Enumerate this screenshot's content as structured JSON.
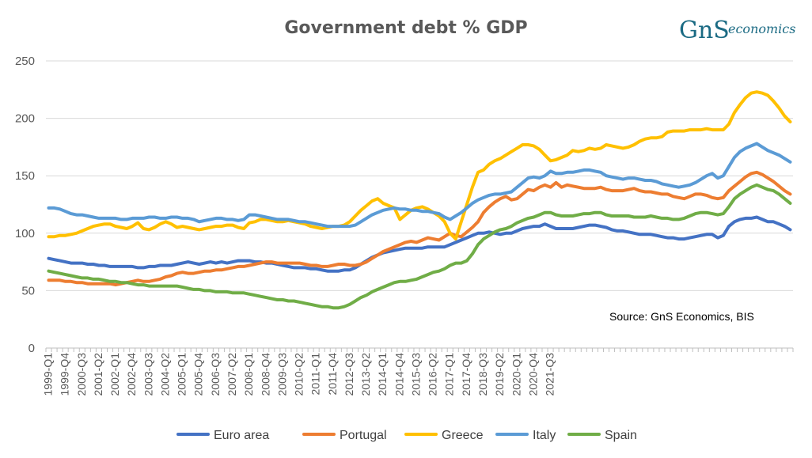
{
  "colors": {
    "Euro area": "#4472c4",
    "Portugal": "#ed7d31",
    "Greece": "#ffc000",
    "Italy": "#5b9bd5",
    "Spain": "#70ad47"
  },
  "logo": {
    "mark": "GnS",
    "text": "economics"
  },
  "source_note": "Source: GnS Economics, BIS",
  "chart_data": {
    "type": "line",
    "title": "Government debt % GDP",
    "xlabel": "",
    "ylabel": "",
    "ylim": [
      0,
      250
    ],
    "yticks": [
      0,
      50,
      100,
      150,
      200,
      250
    ],
    "grid": true,
    "legend": "bottom",
    "start_quarter": "1999-Q1",
    "x_tick_labels": [
      "1999-Q1",
      "1999-Q4",
      "2000-Q3",
      "2001-Q2",
      "2002-Q1",
      "2002-Q4",
      "2003-Q3",
      "2004-Q2",
      "2005-Q1",
      "2005-Q4",
      "2006-Q3",
      "2007-Q2",
      "2008-Q1",
      "2008-Q4",
      "2009-Q3",
      "2010-Q2",
      "2011-Q1",
      "2011-Q4",
      "2012-Q3",
      "2013-Q2",
      "2014-Q1",
      "2014-Q4",
      "2015-Q3",
      "2016-Q2",
      "2017-Q1",
      "2017-Q4",
      "2018-Q3",
      "2019-Q2",
      "2020-Q1",
      "2020-Q4",
      "2021-Q3"
    ],
    "series": [
      {
        "name": "Euro area",
        "values": [
          78,
          77,
          76,
          75,
          74,
          74,
          74,
          73,
          73,
          72,
          72,
          71,
          71,
          71,
          71,
          71,
          70,
          70,
          71,
          71,
          72,
          72,
          72,
          73,
          74,
          75,
          74,
          73,
          74,
          75,
          74,
          75,
          74,
          75,
          76,
          76,
          76,
          75,
          75,
          74,
          74,
          73,
          72,
          71,
          70,
          70,
          70,
          69,
          69,
          68,
          67,
          67,
          67,
          68,
          68,
          70,
          73,
          76,
          79,
          81,
          83,
          84,
          85,
          86,
          87,
          87,
          87,
          87,
          88,
          88,
          88,
          88,
          90,
          92,
          94,
          96,
          98,
          100,
          100,
          101,
          100,
          99,
          100,
          100,
          102,
          104,
          105,
          106,
          106,
          108,
          106,
          104,
          104,
          104,
          104,
          105,
          106,
          107,
          107,
          106,
          105,
          103,
          102,
          102,
          101,
          100,
          99,
          99,
          99,
          98,
          97,
          96,
          96,
          95,
          95,
          96,
          97,
          98,
          99,
          99,
          96,
          98,
          106,
          110,
          112,
          113,
          113,
          114,
          112,
          110,
          110,
          108,
          106,
          103
        ]
      },
      {
        "name": "Portugal",
        "values": [
          59,
          59,
          59,
          58,
          58,
          57,
          57,
          56,
          56,
          56,
          56,
          56,
          55,
          56,
          57,
          58,
          59,
          58,
          58,
          59,
          60,
          62,
          63,
          65,
          66,
          65,
          65,
          66,
          67,
          67,
          68,
          68,
          69,
          70,
          71,
          71,
          72,
          73,
          74,
          75,
          75,
          74,
          74,
          74,
          74,
          74,
          73,
          72,
          72,
          71,
          71,
          72,
          73,
          73,
          72,
          72,
          73,
          75,
          78,
          81,
          84,
          86,
          88,
          90,
          92,
          93,
          92,
          94,
          96,
          95,
          94,
          97,
          100,
          98,
          97,
          101,
          105,
          110,
          118,
          123,
          127,
          130,
          132,
          129,
          130,
          134,
          138,
          137,
          140,
          142,
          140,
          144,
          140,
          142,
          141,
          140,
          139,
          139,
          139,
          140,
          138,
          137,
          137,
          137,
          138,
          139,
          137,
          136,
          136,
          135,
          134,
          134,
          132,
          131,
          130,
          132,
          134,
          134,
          133,
          131,
          130,
          131,
          137,
          141,
          145,
          149,
          152,
          153,
          151,
          148,
          145,
          141,
          137,
          134
        ]
      },
      {
        "name": "Greece",
        "values": [
          97,
          97,
          98,
          98,
          99,
          100,
          102,
          104,
          106,
          107,
          108,
          108,
          106,
          105,
          104,
          106,
          109,
          104,
          103,
          105,
          108,
          110,
          108,
          105,
          106,
          105,
          104,
          103,
          104,
          105,
          106,
          106,
          107,
          107,
          105,
          104,
          109,
          110,
          112,
          112,
          111,
          110,
          110,
          111,
          110,
          109,
          108,
          106,
          105,
          104,
          105,
          106,
          106,
          107,
          110,
          115,
          120,
          124,
          128,
          130,
          126,
          124,
          122,
          112,
          116,
          120,
          122,
          123,
          121,
          118,
          115,
          110,
          100,
          95,
          110,
          125,
          140,
          153,
          155,
          160,
          163,
          165,
          168,
          171,
          174,
          177,
          177,
          176,
          173,
          168,
          163,
          164,
          166,
          168,
          172,
          171,
          172,
          174,
          173,
          174,
          177,
          176,
          175,
          174,
          175,
          177,
          180,
          182,
          183,
          183,
          184,
          188,
          189,
          189,
          189,
          190,
          190,
          190,
          191,
          190,
          190,
          190,
          195,
          205,
          212,
          218,
          222,
          223,
          222,
          220,
          215,
          209,
          202,
          197
        ]
      },
      {
        "name": "Italy",
        "values": [
          122,
          122,
          121,
          119,
          117,
          116,
          116,
          115,
          114,
          113,
          113,
          113,
          113,
          112,
          112,
          113,
          113,
          113,
          114,
          114,
          113,
          113,
          114,
          114,
          113,
          113,
          112,
          110,
          111,
          112,
          113,
          113,
          112,
          112,
          111,
          112,
          116,
          116,
          115,
          114,
          113,
          112,
          112,
          112,
          111,
          110,
          110,
          109,
          108,
          107,
          106,
          106,
          106,
          106,
          106,
          107,
          110,
          113,
          116,
          118,
          120,
          121,
          122,
          121,
          121,
          120,
          120,
          119,
          119,
          118,
          117,
          114,
          112,
          115,
          118,
          122,
          126,
          129,
          131,
          133,
          134,
          134,
          135,
          136,
          140,
          144,
          148,
          149,
          148,
          150,
          154,
          152,
          152,
          153,
          153,
          154,
          155,
          155,
          154,
          153,
          150,
          149,
          148,
          147,
          148,
          148,
          147,
          146,
          146,
          145,
          143,
          142,
          141,
          140,
          141,
          142,
          144,
          147,
          150,
          152,
          148,
          150,
          158,
          166,
          171,
          174,
          176,
          178,
          175,
          172,
          170,
          168,
          165,
          162
        ]
      },
      {
        "name": "Spain",
        "values": [
          67,
          66,
          65,
          64,
          63,
          62,
          61,
          61,
          60,
          60,
          59,
          58,
          58,
          57,
          57,
          56,
          55,
          55,
          54,
          54,
          54,
          54,
          54,
          54,
          53,
          52,
          51,
          51,
          50,
          50,
          49,
          49,
          49,
          48,
          48,
          48,
          47,
          46,
          45,
          44,
          43,
          42,
          42,
          41,
          41,
          40,
          39,
          38,
          37,
          36,
          36,
          35,
          35,
          36,
          38,
          41,
          44,
          46,
          49,
          51,
          53,
          55,
          57,
          58,
          58,
          59,
          60,
          62,
          64,
          66,
          67,
          69,
          72,
          74,
          74,
          76,
          82,
          90,
          95,
          98,
          101,
          103,
          104,
          106,
          109,
          111,
          113,
          114,
          116,
          118,
          118,
          116,
          115,
          115,
          115,
          116,
          117,
          117,
          118,
          118,
          116,
          115,
          115,
          115,
          115,
          114,
          114,
          114,
          115,
          114,
          113,
          113,
          112,
          112,
          113,
          115,
          117,
          118,
          118,
          117,
          116,
          117,
          123,
          130,
          134,
          137,
          140,
          142,
          140,
          138,
          137,
          134,
          130,
          126
        ]
      }
    ]
  }
}
